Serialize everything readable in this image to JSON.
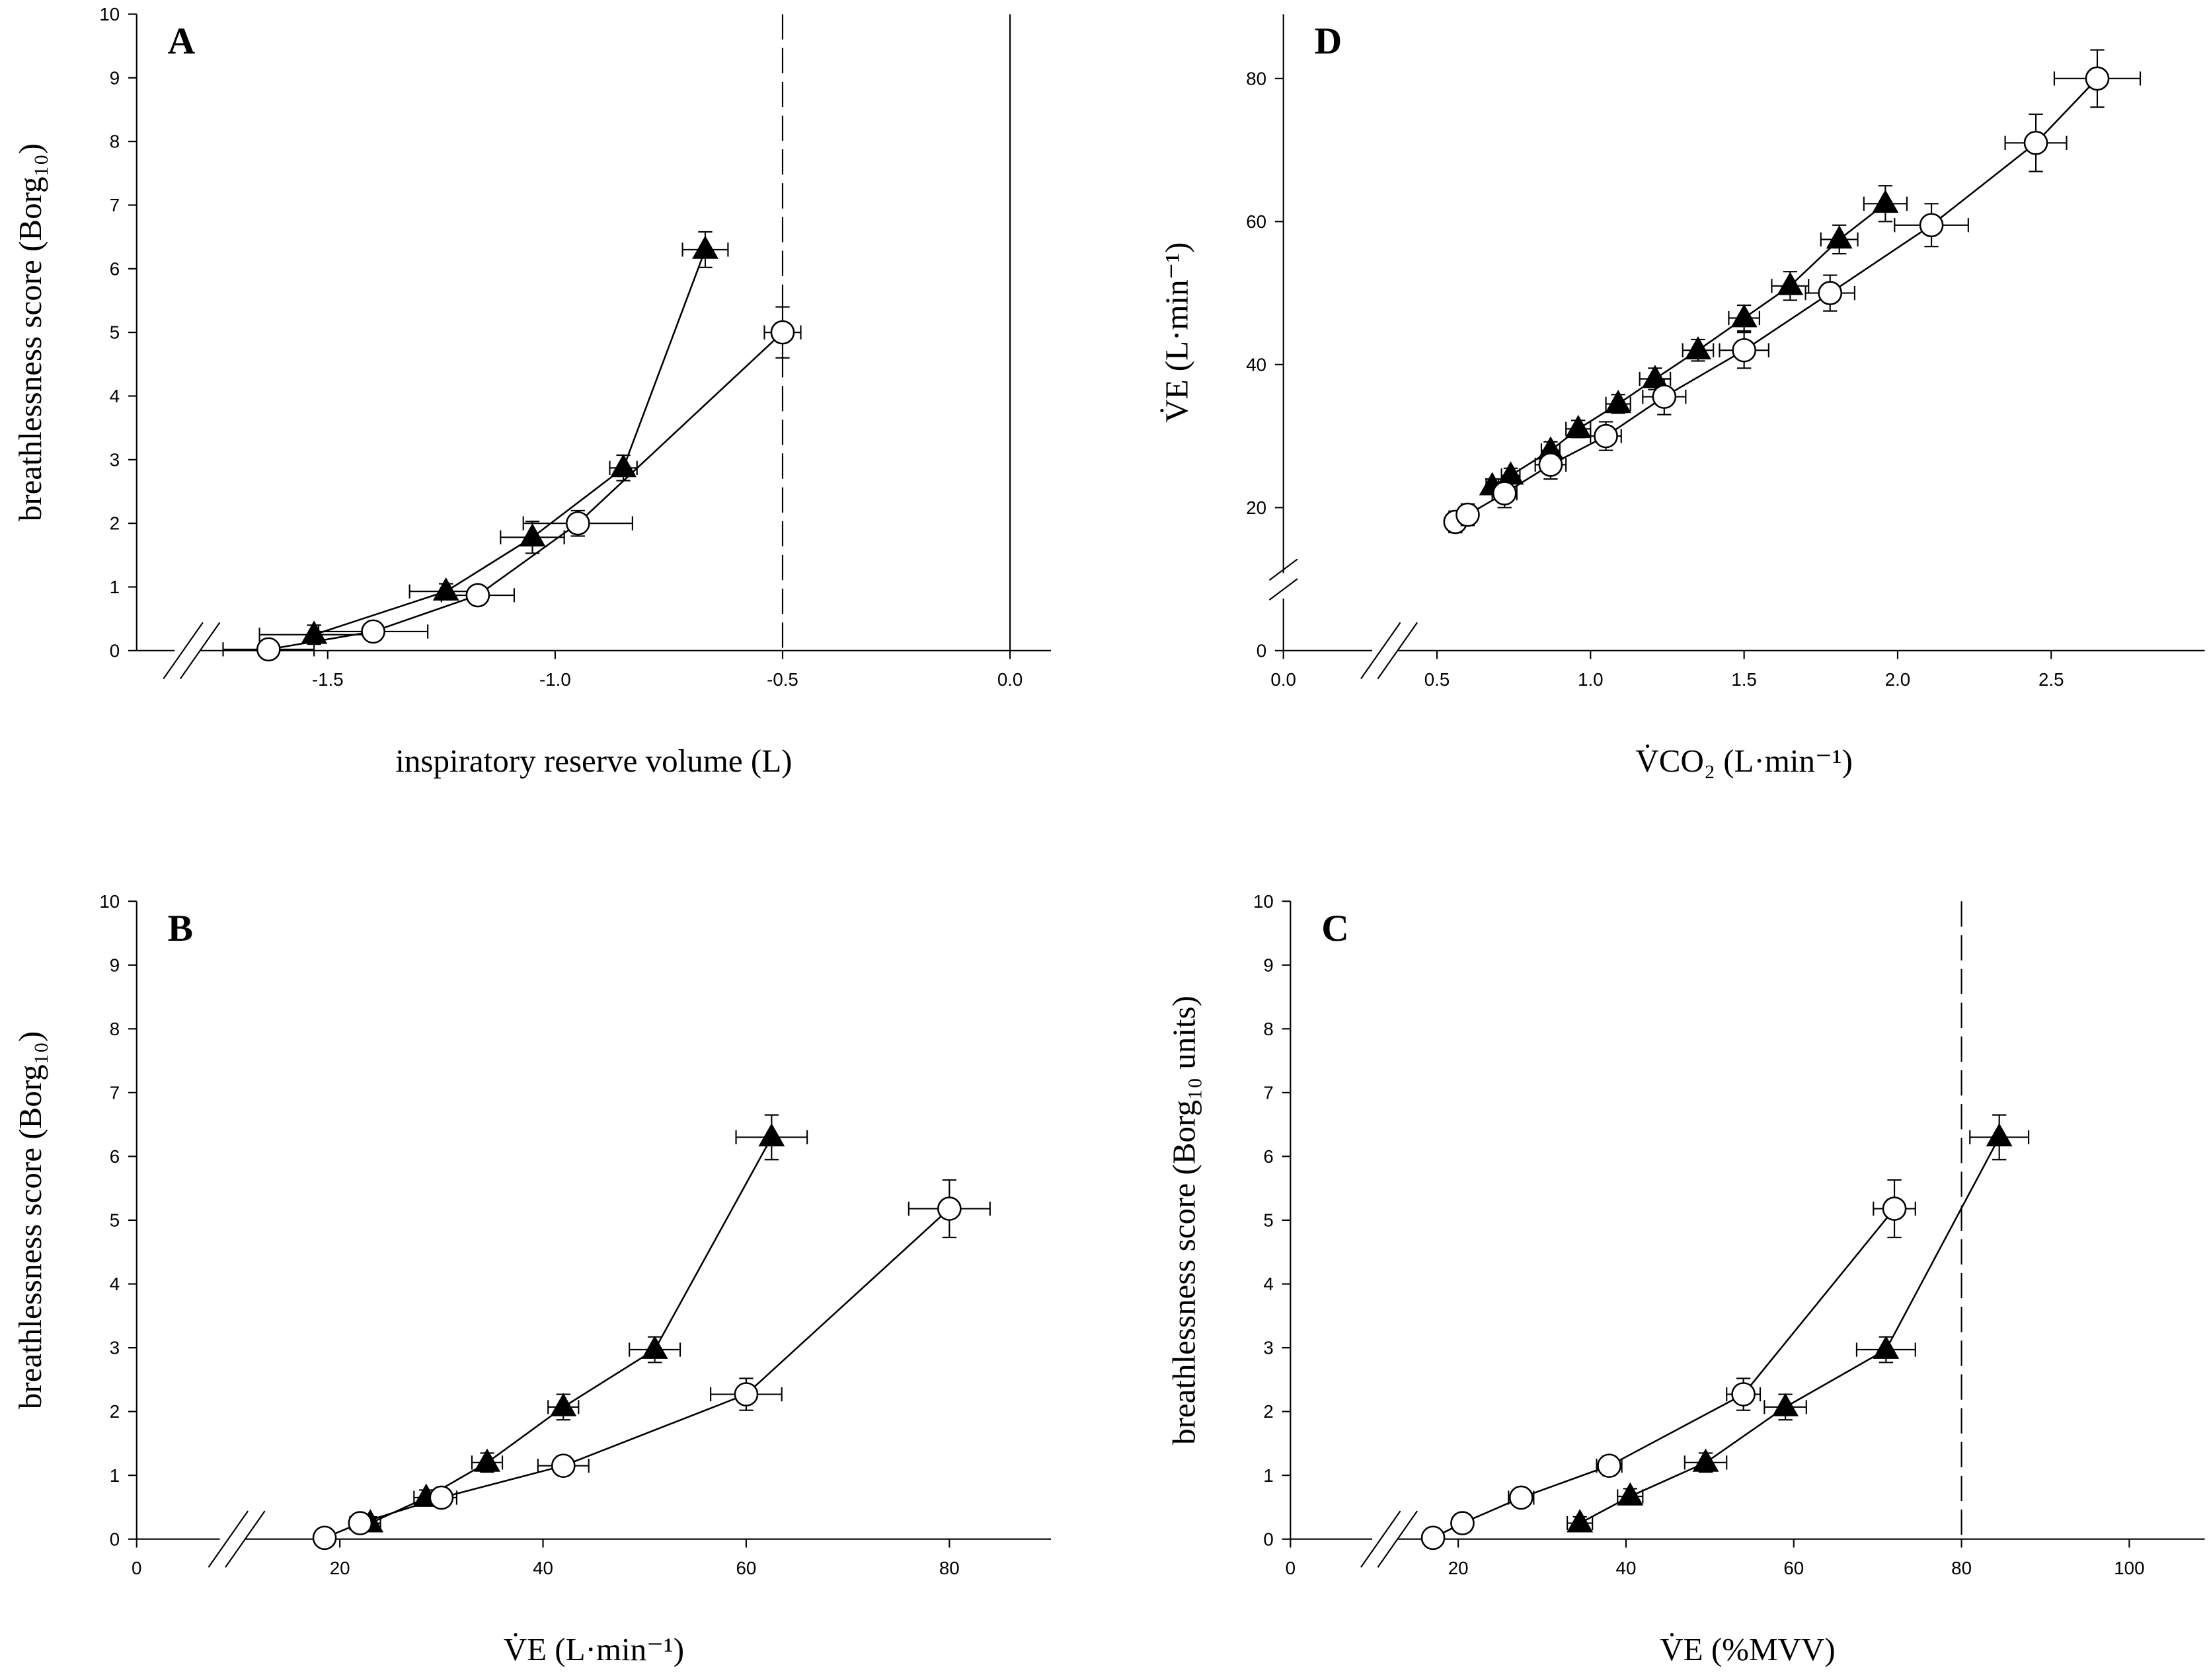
{
  "chart_data": [
    {
      "type": "scatter",
      "annotation": "A",
      "xlabel": "inspiratory reserve volume (L)",
      "ylabel": "breathlessness score (Borg₁₀)",
      "xlim": [
        -1.92,
        0.09
      ],
      "ylim": [
        0,
        10
      ],
      "xticks": [
        -1.5,
        {
          "value": -1,
          "label": "-1.0"
        },
        -0.5,
        {
          "value": 0,
          "label": "0.0"
        }
      ],
      "yticks": [
        0,
        1,
        2,
        3,
        4,
        5,
        6,
        7,
        8,
        9,
        10
      ],
      "vlines": [
        {
          "x": -0.5,
          "style": "dashed"
        },
        {
          "x": 0,
          "style": "solid"
        }
      ],
      "series": [
        {
          "marker": "triangle",
          "color": "#000000",
          "x": [
            -1.53,
            -1.24,
            -1.05,
            -0.85,
            -0.67
          ],
          "values": [
            0.25,
            0.93,
            1.78,
            2.87,
            6.3
          ],
          "xerr": [
            0.12,
            0.08,
            0.07,
            0.03,
            0.05
          ],
          "yerr": [
            0.15,
            0.12,
            0.25,
            0.2,
            0.28
          ]
        },
        {
          "marker": "circle",
          "color": "#ffffff",
          "x": [
            -1.63,
            -1.4,
            -1.17,
            -0.95,
            -0.5
          ],
          "values": [
            0.02,
            0.3,
            0.87,
            2.0,
            5.0
          ],
          "xerr": [
            0.1,
            0.12,
            0.08,
            0.12,
            0.04
          ],
          "yerr": [
            0.08,
            0.1,
            0.1,
            0.2,
            0.4
          ]
        }
      ]
    },
    {
      "type": "scatter",
      "annotation": "D",
      "xlabel": "V̇CO₂ (L·min⁻¹)",
      "ylabel": "V̇E (L·min⁻¹)",
      "xlim": [
        0,
        3.0
      ],
      "ylim": [
        0,
        89
      ],
      "xticks": [
        {
          "value": 0,
          "label": "0.0"
        },
        0.5,
        {
          "value": 1,
          "label": "1.0"
        },
        1.5,
        {
          "value": 2,
          "label": "2.0"
        },
        2.5
      ],
      "yticks": [
        0,
        20,
        40,
        60,
        80
      ],
      "series": [
        {
          "marker": "triangle",
          "color": "#000000",
          "x": [
            0.68,
            0.74,
            0.87,
            0.96,
            1.09,
            1.21,
            1.35,
            1.5,
            1.65,
            1.81,
            1.96
          ],
          "values": [
            23,
            24.5,
            28,
            31,
            34.5,
            38,
            42,
            46.5,
            51,
            57.5,
            62.5
          ],
          "xerr": [
            0.02,
            0.03,
            0.03,
            0.04,
            0.04,
            0.05,
            0.05,
            0.05,
            0.06,
            0.06,
            0.07
          ],
          "yerr": [
            1,
            1,
            1.2,
            1.2,
            1.3,
            1.5,
            1.5,
            1.8,
            2,
            2,
            2.5
          ]
        },
        {
          "marker": "circle",
          "color": "#ffffff",
          "x": [
            0.56,
            0.6,
            0.72,
            0.87,
            1.05,
            1.24,
            1.5,
            1.78,
            2.11,
            2.45,
            2.65
          ],
          "values": [
            18,
            19,
            22,
            26,
            30,
            35.5,
            42,
            50,
            59.5,
            71,
            80
          ],
          "xerr": [
            0.03,
            0.03,
            0.04,
            0.05,
            0.05,
            0.07,
            0.08,
            0.08,
            0.12,
            0.1,
            0.14
          ],
          "yerr": [
            1.5,
            1.5,
            2,
            2,
            2,
            2.5,
            2.5,
            2.5,
            3,
            4,
            4
          ]
        }
      ]
    },
    {
      "type": "scatter",
      "annotation": "B",
      "xlabel": "V̇E (L·min⁻¹)",
      "ylabel": "breathlessness score (Borg₁₀)",
      "xlim": [
        0,
        90
      ],
      "ylim": [
        0,
        10
      ],
      "xticks": [
        0,
        20,
        40,
        60,
        80
      ],
      "yticks": [
        0,
        1,
        2,
        3,
        4,
        5,
        6,
        7,
        8,
        9,
        10
      ],
      "series": [
        {
          "marker": "triangle",
          "color": "#000000",
          "x": [
            23,
            28.5,
            34.5,
            42,
            51,
            62.5
          ],
          "values": [
            0.25,
            0.65,
            1.2,
            2.07,
            2.97,
            6.3
          ],
          "xerr": [
            1,
            1.2,
            1.5,
            1.5,
            2.5,
            3.5
          ],
          "yerr": [
            0.1,
            0.12,
            0.15,
            0.2,
            0.2,
            0.35
          ]
        },
        {
          "marker": "circle",
          "color": "#ffffff",
          "x": [
            18.5,
            22,
            30,
            42,
            60,
            80
          ],
          "values": [
            0.02,
            0.25,
            0.65,
            1.15,
            2.27,
            5.18
          ],
          "xerr": [
            0.8,
            1,
            1.5,
            2.5,
            3.5,
            4
          ],
          "yerr": [
            0.08,
            0.1,
            0.12,
            0.15,
            0.25,
            0.45
          ]
        }
      ]
    },
    {
      "type": "scatter",
      "annotation": "C",
      "xlabel": "V̇E (%MVV)",
      "ylabel": "breathlessness score (Borg₁₀ units)",
      "xlim": [
        0,
        109
      ],
      "ylim": [
        0,
        10
      ],
      "xticks": [
        0,
        20,
        40,
        60,
        80,
        100
      ],
      "yticks": [
        0,
        1,
        2,
        3,
        4,
        5,
        6,
        7,
        8,
        9,
        10
      ],
      "vlines": [
        {
          "x": 80,
          "style": "dashed"
        }
      ],
      "series": [
        {
          "marker": "triangle",
          "color": "#000000",
          "x": [
            34.5,
            40.5,
            49.5,
            59,
            71,
            84.5
          ],
          "values": [
            0.25,
            0.67,
            1.2,
            2.07,
            2.97,
            6.3
          ],
          "xerr": [
            1.5,
            1.5,
            2.5,
            2.5,
            3.5,
            3.5
          ],
          "yerr": [
            0.1,
            0.12,
            0.15,
            0.2,
            0.2,
            0.35
          ]
        },
        {
          "marker": "circle",
          "color": "#ffffff",
          "x": [
            17,
            20.5,
            27.5,
            38,
            54,
            72
          ],
          "values": [
            0.02,
            0.25,
            0.65,
            1.15,
            2.27,
            5.18
          ],
          "xerr": [
            0.8,
            1,
            1.5,
            1.5,
            2,
            2.5
          ],
          "yerr": [
            0.08,
            0.1,
            0.12,
            0.15,
            0.25,
            0.45
          ]
        }
      ]
    }
  ]
}
